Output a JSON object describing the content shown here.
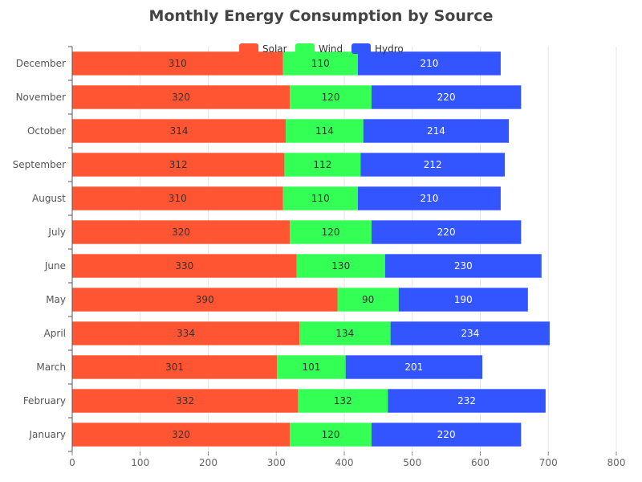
{
  "chart_data": {
    "type": "bar",
    "orientation": "horizontal",
    "stacked": true,
    "title": "Monthly Energy Consumption by Source",
    "categories": [
      "January",
      "February",
      "March",
      "April",
      "May",
      "June",
      "July",
      "August",
      "September",
      "October",
      "November",
      "December"
    ],
    "series": [
      {
        "name": "Solar",
        "color": "#ff5533",
        "label_color": "#333333",
        "values": [
          320,
          332,
          301,
          334,
          390,
          330,
          320,
          310,
          312,
          314,
          320,
          310
        ]
      },
      {
        "name": "Wind",
        "color": "#33ff55",
        "label_color": "#333333",
        "values": [
          120,
          132,
          101,
          134,
          90,
          130,
          120,
          110,
          112,
          114,
          120,
          110
        ]
      },
      {
        "name": "Hydro",
        "color": "#3355ff",
        "label_color": "#ffffff",
        "values": [
          220,
          232,
          201,
          234,
          190,
          230,
          220,
          210,
          212,
          214,
          220,
          210
        ]
      }
    ],
    "xlim": [
      0,
      800
    ],
    "x_ticks": [
      0,
      100,
      200,
      300,
      400,
      500,
      600,
      700,
      800
    ],
    "grid": "vertical",
    "legend": "top-center",
    "data_labels": true
  }
}
